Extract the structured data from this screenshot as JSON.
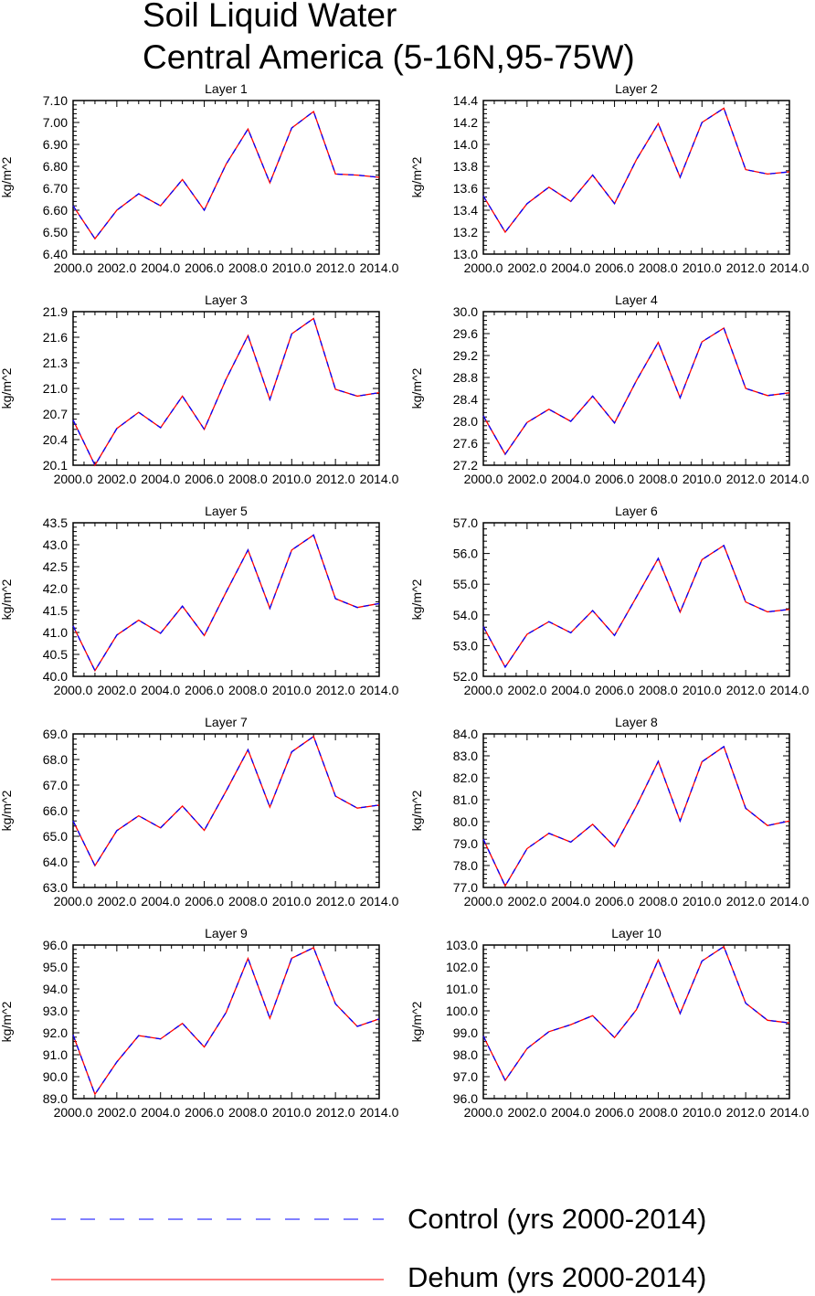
{
  "title": {
    "line1": "Soil Liquid Water",
    "line2": "Central America (5-16N,95-75W)"
  },
  "legend": {
    "items": [
      {
        "label": "Control (yrs 2000-2014)",
        "color": "#0000ff",
        "style": "dashed"
      },
      {
        "label": "Dehum (yrs 2000-2014)",
        "color": "#ff0000",
        "style": "solid"
      }
    ]
  },
  "chart_data": [
    {
      "type": "line",
      "title": "Layer 1",
      "ylabel": "kg/m^2",
      "xlim": [
        2000,
        2014
      ],
      "ylim": [
        6.4,
        7.1
      ],
      "x_ticks": [
        "2000.0",
        "2002.0",
        "2004.0",
        "2006.0",
        "2008.0",
        "2010.0",
        "2012.0",
        "2014.0"
      ],
      "y_ticks": [
        "6.40",
        "6.50",
        "6.60",
        "6.70",
        "6.80",
        "6.90",
        "7.00",
        "7.10"
      ],
      "x": [
        2000,
        2001,
        2002,
        2003,
        2004,
        2005,
        2006,
        2007,
        2008,
        2009,
        2010,
        2011,
        2012,
        2013,
        2014
      ],
      "series": [
        {
          "name": "Control (yrs 2000-2014)",
          "values": [
            6.62,
            6.47,
            6.6,
            6.675,
            6.62,
            6.74,
            6.6,
            6.81,
            6.97,
            6.725,
            6.975,
            7.05,
            6.765,
            6.76,
            6.75
          ]
        },
        {
          "name": "Dehum (yrs 2000-2014)",
          "values": [
            6.62,
            6.47,
            6.6,
            6.675,
            6.62,
            6.74,
            6.6,
            6.81,
            6.97,
            6.725,
            6.975,
            7.05,
            6.765,
            6.76,
            6.75
          ]
        }
      ]
    },
    {
      "type": "line",
      "title": "Layer 2",
      "ylabel": "kg/m^2",
      "xlim": [
        2000,
        2014
      ],
      "ylim": [
        13.0,
        14.4
      ],
      "x_ticks": [
        "2000.0",
        "2002.0",
        "2004.0",
        "2006.0",
        "2008.0",
        "2010.0",
        "2012.0",
        "2014.0"
      ],
      "y_ticks": [
        "13.0",
        "13.2",
        "13.4",
        "13.6",
        "13.8",
        "14.0",
        "14.2",
        "14.4"
      ],
      "x": [
        2000,
        2001,
        2002,
        2003,
        2004,
        2005,
        2006,
        2007,
        2008,
        2009,
        2010,
        2011,
        2012,
        2013,
        2014
      ],
      "series": [
        {
          "name": "Control (yrs 2000-2014)",
          "values": [
            13.53,
            13.2,
            13.46,
            13.61,
            13.48,
            13.72,
            13.46,
            13.86,
            14.19,
            13.7,
            14.2,
            14.33,
            13.77,
            13.73,
            13.75
          ]
        },
        {
          "name": "Dehum (yrs 2000-2014)",
          "values": [
            13.53,
            13.2,
            13.46,
            13.61,
            13.48,
            13.72,
            13.46,
            13.86,
            14.19,
            13.7,
            14.2,
            14.33,
            13.77,
            13.73,
            13.75
          ]
        }
      ]
    },
    {
      "type": "line",
      "title": "Layer 3",
      "ylabel": "kg/m^2",
      "xlim": [
        2000,
        2014
      ],
      "ylim": [
        20.1,
        21.9
      ],
      "x_ticks": [
        "2000.0",
        "2002.0",
        "2004.0",
        "2006.0",
        "2008.0",
        "2010.0",
        "2012.0",
        "2014.0"
      ],
      "y_ticks": [
        "20.1",
        "20.4",
        "20.7",
        "21.0",
        "21.3",
        "21.6",
        "21.9"
      ],
      "x": [
        2000,
        2001,
        2002,
        2003,
        2004,
        2005,
        2006,
        2007,
        2008,
        2009,
        2010,
        2011,
        2012,
        2013,
        2014
      ],
      "series": [
        {
          "name": "Control (yrs 2000-2014)",
          "values": [
            20.63,
            20.1,
            20.53,
            20.72,
            20.54,
            20.91,
            20.52,
            21.11,
            21.62,
            20.87,
            21.64,
            21.82,
            20.99,
            20.91,
            20.95
          ]
        },
        {
          "name": "Dehum (yrs 2000-2014)",
          "values": [
            20.63,
            20.1,
            20.53,
            20.72,
            20.54,
            20.91,
            20.52,
            21.11,
            21.62,
            20.87,
            21.64,
            21.82,
            20.99,
            20.91,
            20.95
          ]
        }
      ]
    },
    {
      "type": "line",
      "title": "Layer 4",
      "ylabel": "kg/m^2",
      "xlim": [
        2000,
        2014
      ],
      "ylim": [
        27.2,
        30.0
      ],
      "x_ticks": [
        "2000.0",
        "2002.0",
        "2004.0",
        "2006.0",
        "2008.0",
        "2010.0",
        "2012.0",
        "2014.0"
      ],
      "y_ticks": [
        "27.2",
        "27.6",
        "28.0",
        "28.4",
        "28.8",
        "29.2",
        "29.6",
        "30.0"
      ],
      "x": [
        2000,
        2001,
        2002,
        2003,
        2004,
        2005,
        2006,
        2007,
        2008,
        2009,
        2010,
        2011,
        2012,
        2013,
        2014
      ],
      "series": [
        {
          "name": "Control (yrs 2000-2014)",
          "values": [
            28.1,
            27.4,
            27.98,
            28.22,
            28.0,
            28.46,
            27.97,
            28.74,
            29.44,
            28.43,
            29.45,
            29.7,
            28.6,
            28.47,
            28.52
          ]
        },
        {
          "name": "Dehum (yrs 2000-2014)",
          "values": [
            28.1,
            27.4,
            27.98,
            28.22,
            28.0,
            28.46,
            27.97,
            28.74,
            29.44,
            28.43,
            29.45,
            29.7,
            28.6,
            28.47,
            28.52
          ]
        }
      ]
    },
    {
      "type": "line",
      "title": "Layer 5",
      "ylabel": "kg/m^2",
      "xlim": [
        2000,
        2014
      ],
      "ylim": [
        40.0,
        43.5
      ],
      "x_ticks": [
        "2000.0",
        "2002.0",
        "2004.0",
        "2006.0",
        "2008.0",
        "2010.0",
        "2012.0",
        "2014.0"
      ],
      "y_ticks": [
        "40.0",
        "40.5",
        "41.0",
        "41.5",
        "42.0",
        "42.5",
        "43.0",
        "43.5"
      ],
      "x": [
        2000,
        2001,
        2002,
        2003,
        2004,
        2005,
        2006,
        2007,
        2008,
        2009,
        2010,
        2011,
        2012,
        2013,
        2014
      ],
      "series": [
        {
          "name": "Control (yrs 2000-2014)",
          "values": [
            41.15,
            40.13,
            40.94,
            41.28,
            40.98,
            41.6,
            40.93,
            41.92,
            42.88,
            41.55,
            42.88,
            43.22,
            41.77,
            41.57,
            41.66
          ]
        },
        {
          "name": "Dehum (yrs 2000-2014)",
          "values": [
            41.15,
            40.13,
            40.94,
            41.28,
            40.98,
            41.6,
            40.93,
            41.92,
            42.88,
            41.55,
            42.88,
            43.22,
            41.77,
            41.57,
            41.66
          ]
        }
      ]
    },
    {
      "type": "line",
      "title": "Layer 6",
      "ylabel": "kg/m^2",
      "xlim": [
        2000,
        2014
      ],
      "ylim": [
        52.0,
        57.0
      ],
      "x_ticks": [
        "2000.0",
        "2002.0",
        "2004.0",
        "2006.0",
        "2008.0",
        "2010.0",
        "2012.0",
        "2014.0"
      ],
      "y_ticks": [
        "52.0",
        "53.0",
        "54.0",
        "55.0",
        "56.0",
        "57.0"
      ],
      "x": [
        2000,
        2001,
        2002,
        2003,
        2004,
        2005,
        2006,
        2007,
        2008,
        2009,
        2010,
        2011,
        2012,
        2013,
        2014
      ],
      "series": [
        {
          "name": "Control (yrs 2000-2014)",
          "values": [
            53.62,
            52.3,
            53.37,
            53.78,
            53.42,
            54.14,
            53.33,
            54.58,
            55.84,
            54.09,
            55.8,
            56.26,
            54.42,
            54.1,
            54.18
          ]
        },
        {
          "name": "Dehum (yrs 2000-2014)",
          "values": [
            53.62,
            52.3,
            53.37,
            53.78,
            53.42,
            54.14,
            53.33,
            54.58,
            55.84,
            54.09,
            55.8,
            56.26,
            54.42,
            54.1,
            54.18
          ]
        }
      ]
    },
    {
      "type": "line",
      "title": "Layer 7",
      "ylabel": "kg/m^2",
      "xlim": [
        2000,
        2014
      ],
      "ylim": [
        63.0,
        69.0
      ],
      "x_ticks": [
        "2000.0",
        "2002.0",
        "2004.0",
        "2006.0",
        "2008.0",
        "2010.0",
        "2012.0",
        "2014.0"
      ],
      "y_ticks": [
        "63.0",
        "64.0",
        "65.0",
        "66.0",
        "67.0",
        "68.0",
        "69.0"
      ],
      "x": [
        2000,
        2001,
        2002,
        2003,
        2004,
        2005,
        2006,
        2007,
        2008,
        2009,
        2010,
        2011,
        2012,
        2013,
        2014
      ],
      "series": [
        {
          "name": "Control (yrs 2000-2014)",
          "values": [
            65.6,
            63.85,
            65.22,
            65.8,
            65.33,
            66.18,
            65.23,
            66.77,
            68.38,
            66.14,
            68.3,
            68.9,
            66.57,
            66.1,
            66.22
          ]
        },
        {
          "name": "Dehum (yrs 2000-2014)",
          "values": [
            65.6,
            63.85,
            65.22,
            65.8,
            65.33,
            66.18,
            65.23,
            66.77,
            68.38,
            66.14,
            68.3,
            68.9,
            66.57,
            66.1,
            66.22
          ]
        }
      ]
    },
    {
      "type": "line",
      "title": "Layer 8",
      "ylabel": "kg/m^2",
      "xlim": [
        2000,
        2014
      ],
      "ylim": [
        77.0,
        84.0
      ],
      "x_ticks": [
        "2000.0",
        "2002.0",
        "2004.0",
        "2006.0",
        "2008.0",
        "2010.0",
        "2012.0",
        "2014.0"
      ],
      "y_ticks": [
        "77.0",
        "78.0",
        "79.0",
        "80.0",
        "81.0",
        "82.0",
        "83.0",
        "84.0"
      ],
      "x": [
        2000,
        2001,
        2002,
        2003,
        2004,
        2005,
        2006,
        2007,
        2008,
        2009,
        2010,
        2011,
        2012,
        2013,
        2014
      ],
      "series": [
        {
          "name": "Control (yrs 2000-2014)",
          "values": [
            79.2,
            77.07,
            78.77,
            79.47,
            79.07,
            79.88,
            78.86,
            80.71,
            82.75,
            80.03,
            82.73,
            83.42,
            80.61,
            79.82,
            80.03
          ]
        },
        {
          "name": "Dehum (yrs 2000-2014)",
          "values": [
            79.2,
            77.07,
            78.77,
            79.47,
            79.07,
            79.88,
            78.86,
            80.71,
            82.75,
            80.03,
            82.73,
            83.42,
            80.61,
            79.82,
            80.03
          ]
        }
      ]
    },
    {
      "type": "line",
      "title": "Layer 9",
      "ylabel": "kg/m^2",
      "xlim": [
        2000,
        2014
      ],
      "ylim": [
        89.0,
        96.0
      ],
      "x_ticks": [
        "2000.0",
        "2002.0",
        "2004.0",
        "2006.0",
        "2008.0",
        "2010.0",
        "2012.0",
        "2014.0"
      ],
      "y_ticks": [
        "89.0",
        "90.0",
        "91.0",
        "92.0",
        "93.0",
        "94.0",
        "95.0",
        "96.0"
      ],
      "x": [
        2000,
        2001,
        2002,
        2003,
        2004,
        2005,
        2006,
        2007,
        2008,
        2009,
        2010,
        2011,
        2012,
        2013,
        2014
      ],
      "series": [
        {
          "name": "Control (yrs 2000-2014)",
          "values": [
            91.9,
            89.2,
            90.67,
            91.87,
            91.72,
            92.43,
            91.35,
            92.93,
            95.39,
            92.66,
            95.4,
            95.88,
            93.32,
            92.29,
            92.63
          ]
        },
        {
          "name": "Dehum (yrs 2000-2014)",
          "values": [
            91.9,
            89.2,
            90.67,
            91.87,
            91.72,
            92.43,
            91.35,
            92.93,
            95.39,
            92.66,
            95.4,
            95.88,
            93.32,
            92.29,
            92.63
          ]
        }
      ]
    },
    {
      "type": "line",
      "title": "Layer 10",
      "ylabel": "kg/m^2",
      "xlim": [
        2000,
        2014
      ],
      "ylim": [
        96.0,
        103.0
      ],
      "x_ticks": [
        "2000.0",
        "2002.0",
        "2004.0",
        "2006.0",
        "2008.0",
        "2010.0",
        "2012.0",
        "2014.0"
      ],
      "y_ticks": [
        "96.0",
        "97.0",
        "98.0",
        "99.0",
        "100.0",
        "101.0",
        "102.0",
        "103.0"
      ],
      "x": [
        2000,
        2001,
        2002,
        2003,
        2004,
        2005,
        2006,
        2007,
        2008,
        2009,
        2010,
        2011,
        2012,
        2013,
        2014
      ],
      "series": [
        {
          "name": "Control (yrs 2000-2014)",
          "values": [
            98.85,
            96.83,
            98.28,
            99.05,
            99.37,
            99.78,
            98.78,
            100.05,
            102.32,
            99.88,
            102.27,
            102.93,
            100.35,
            99.57,
            99.45
          ]
        },
        {
          "name": "Dehum (yrs 2000-2014)",
          "values": [
            98.85,
            96.83,
            98.28,
            99.05,
            99.37,
            99.78,
            98.78,
            100.05,
            102.32,
            99.88,
            102.27,
            102.93,
            100.35,
            99.57,
            99.45
          ]
        }
      ]
    }
  ]
}
